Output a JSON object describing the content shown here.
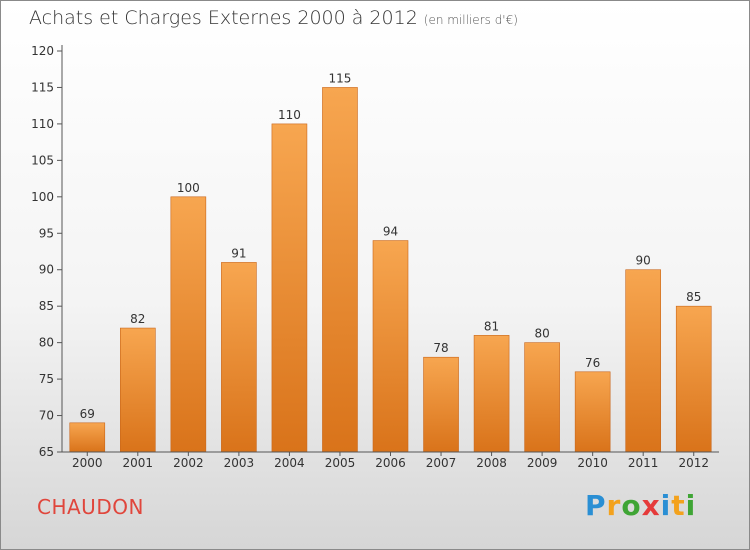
{
  "header": {
    "title": "Achats et Charges Externes 2000 à 2012",
    "subtitle": "(en milliers d'€)"
  },
  "commune": "CHAUDON",
  "logo": {
    "letters": [
      "P",
      "r",
      "o",
      "x",
      "i",
      "t",
      "i"
    ],
    "colors": [
      "#2a8fd4",
      "#f3a21d",
      "#3fa535",
      "#e53a3a",
      "#2a8fd4",
      "#f3a21d",
      "#3fa535"
    ]
  },
  "colors": {
    "bar_top": "#f7a650",
    "bar_bottom": "#d9731a",
    "bar_edge": "#c9661a"
  },
  "chart_data": {
    "type": "bar",
    "title": "Achats et Charges Externes 2000 à 2012",
    "subtitle": "(en milliers d'€)",
    "categories": [
      "2000",
      "2001",
      "2002",
      "2003",
      "2004",
      "2005",
      "2006",
      "2007",
      "2008",
      "2009",
      "2010",
      "2011",
      "2012"
    ],
    "values": [
      69,
      82,
      100,
      91,
      110,
      115,
      94,
      78,
      81,
      80,
      76,
      90,
      85
    ],
    "ylim": [
      65,
      120
    ],
    "yticks": [
      65,
      70,
      75,
      80,
      85,
      90,
      95,
      100,
      105,
      110,
      115,
      120
    ],
    "grid": false,
    "xlabel": "",
    "ylabel": ""
  }
}
